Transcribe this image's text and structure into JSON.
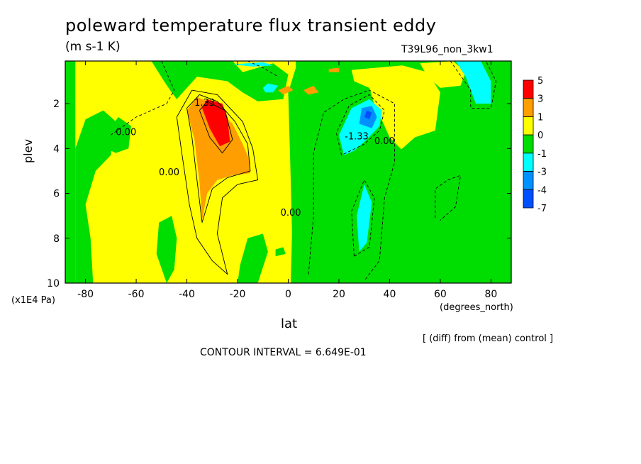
{
  "chart_data": {
    "type": "heatmap",
    "title": "poleward temperature flux transient eddy",
    "units": "(m s-1 K)",
    "run_label": "T39L96_non_3kw1",
    "xlabel": "lat",
    "x_units": "(degrees_north)",
    "ylabel": "plev",
    "y_units": "(x1E4 Pa)",
    "x_range": [
      -88,
      88
    ],
    "y_range": [
      10,
      0.1
    ],
    "x_ticks": [
      -80,
      -60,
      -40,
      -20,
      0,
      20,
      40,
      60,
      80
    ],
    "x_tick_labels": [
      "-80",
      "-60",
      "-40",
      "-20",
      "0",
      "20",
      "40",
      "60",
      "80"
    ],
    "y_ticks": [
      2,
      4,
      6,
      8,
      10
    ],
    "y_tick_labels": [
      "2",
      "4",
      "6",
      "8",
      "10"
    ],
    "note": "[ (diff) from (mean) control ]",
    "contour_interval": "CONTOUR INTERVAL = 6.649E-01",
    "contour_labels": [
      {
        "text": "1.33",
        "lat": -33,
        "plev": 2.1
      },
      {
        "text": "-1.33",
        "lat": 27,
        "plev": 3.6
      },
      {
        "text": "0.00",
        "lat": -64,
        "plev": 3.4
      },
      {
        "text": "0.00",
        "lat": -47,
        "plev": 5.2
      },
      {
        "text": "0.00",
        "lat": 1,
        "plev": 7.0
      },
      {
        "text": "0.00",
        "lat": 38,
        "plev": 3.8
      }
    ],
    "colorbar": {
      "labels": [
        "5",
        "3",
        "1",
        "0",
        "-1",
        "-3",
        "-4",
        "-7"
      ],
      "colors": [
        "#ff0000",
        "#ff9e00",
        "#ffff00",
        "#00dd00",
        "#00ffff",
        "#0090ff",
        "#0050ff"
      ]
    },
    "regions": [
      {
        "color": "#00dd00",
        "points": [
          [
            -88,
            10
          ],
          [
            -88,
            0.1
          ],
          [
            88,
            0.1
          ],
          [
            88,
            10
          ]
        ]
      },
      {
        "color": "#ffff00",
        "points": [
          [
            -84,
            10
          ],
          [
            -84,
            0.1
          ],
          [
            3,
            0.1
          ],
          [
            3,
            1.0
          ],
          [
            0,
            1.5
          ],
          [
            1,
            5.5
          ],
          [
            2,
            10
          ]
        ]
      },
      {
        "color": "#ffff00",
        "points": [
          [
            25,
            0.5
          ],
          [
            45,
            0.3
          ],
          [
            55,
            0.6
          ],
          [
            60,
            1.5
          ],
          [
            58,
            3.2
          ],
          [
            50,
            3.5
          ],
          [
            43,
            4.2
          ],
          [
            38,
            3.6
          ],
          [
            32,
            1.3
          ],
          [
            26,
            1.0
          ]
        ]
      },
      {
        "color": "#ffff00",
        "points": [
          [
            52,
            0.2
          ],
          [
            65,
            0.1
          ],
          [
            70,
            0.6
          ],
          [
            68,
            1.2
          ],
          [
            60,
            1.3
          ],
          [
            55,
            0.8
          ]
        ]
      },
      {
        "color": "#00dd00",
        "points": [
          [
            -77,
            10
          ],
          [
            -78,
            8
          ],
          [
            -80,
            6.5
          ],
          [
            -76,
            5
          ],
          [
            -70,
            4.3
          ],
          [
            -68,
            2.8
          ],
          [
            -73,
            2.3
          ],
          [
            -80,
            2.7
          ],
          [
            -84,
            4
          ],
          [
            -84,
            10
          ]
        ]
      },
      {
        "color": "#00dd00",
        "points": [
          [
            -72,
            3.3
          ],
          [
            -67,
            2.6
          ],
          [
            -62,
            3.0
          ],
          [
            -63,
            4.0
          ],
          [
            -68,
            4.2
          ],
          [
            -72,
            4.0
          ]
        ]
      },
      {
        "color": "#00dd00",
        "points": [
          [
            -48,
            10
          ],
          [
            -52,
            8.7
          ],
          [
            -51,
            7.3
          ],
          [
            -46,
            7.0
          ],
          [
            -44,
            8.0
          ],
          [
            -45,
            9.4
          ]
        ]
      },
      {
        "color": "#00dd00",
        "points": [
          [
            -20,
            10
          ],
          [
            -19,
            9.2
          ],
          [
            -16,
            8.0
          ],
          [
            -10,
            7.8
          ],
          [
            -8,
            8.6
          ],
          [
            -12,
            10
          ]
        ]
      },
      {
        "color": "#00dd00",
        "points": [
          [
            -49,
            1.0
          ],
          [
            -54,
            0.1
          ],
          [
            -22,
            0.1
          ],
          [
            -18,
            0.6
          ],
          [
            -12,
            0.4
          ],
          [
            -6,
            0.2
          ],
          [
            0,
            0.7
          ],
          [
            -2,
            1.8
          ],
          [
            -12,
            1.9
          ],
          [
            -18,
            1.5
          ],
          [
            -24,
            1.0
          ],
          [
            -36,
            0.8
          ],
          [
            -44,
            1.8
          ],
          [
            -46,
            1.5
          ]
        ]
      },
      {
        "color": "#00dd00",
        "points": [
          [
            1,
            10
          ],
          [
            2,
            5.5
          ],
          [
            0,
            1.5
          ],
          [
            3,
            0.4
          ],
          [
            10,
            0.2
          ],
          [
            18,
            0.5
          ],
          [
            22,
            0.9
          ],
          [
            16,
            1.6
          ],
          [
            10,
            1.8
          ],
          [
            6,
            3
          ],
          [
            3,
            5
          ],
          [
            4,
            10
          ]
        ]
      },
      {
        "color": "#00dd00",
        "points": [
          [
            2,
            9.8
          ],
          [
            5,
            9.3
          ],
          [
            8,
            8.9
          ],
          [
            10,
            9.5
          ],
          [
            9,
            10
          ]
        ]
      },
      {
        "color": "#00dd00",
        "points": [
          [
            -5,
            8.5
          ],
          [
            -2,
            8.4
          ],
          [
            -1,
            8.7
          ],
          [
            -5,
            8.8
          ]
        ]
      },
      {
        "color": "#00dd00",
        "points": [
          [
            4,
            10
          ],
          [
            3,
            5
          ],
          [
            6,
            3
          ],
          [
            12,
            2
          ],
          [
            20,
            1.6
          ],
          [
            28,
            1.5
          ],
          [
            36,
            2.5
          ],
          [
            40,
            3.5
          ],
          [
            46,
            4.2
          ],
          [
            52,
            3.9
          ],
          [
            58,
            3.4
          ],
          [
            60,
            1.5
          ],
          [
            68,
            1.4
          ],
          [
            70,
            0.7
          ],
          [
            66,
            0.1
          ],
          [
            88,
            0.1
          ],
          [
            88,
            10
          ]
        ]
      },
      {
        "color": "#00ffff",
        "points": [
          [
            22,
            4.3
          ],
          [
            20,
            3.4
          ],
          [
            25,
            2.2
          ],
          [
            32,
            1.8
          ],
          [
            37,
            2.3
          ],
          [
            36,
            3.0
          ],
          [
            31,
            3.6
          ],
          [
            26,
            4.1
          ]
        ]
      },
      {
        "color": "#00ffff",
        "points": [
          [
            28,
            8.6
          ],
          [
            27,
            7.0
          ],
          [
            30,
            5.6
          ],
          [
            33,
            6.4
          ],
          [
            31,
            8.2
          ]
        ]
      },
      {
        "color": "#00ffff",
        "points": [
          [
            66,
            0.1
          ],
          [
            76,
            0.1
          ],
          [
            80,
            1.0
          ],
          [
            80,
            2.0
          ],
          [
            74,
            2.0
          ],
          [
            70,
            0.8
          ]
        ]
      },
      {
        "color": "#00ffff",
        "points": [
          [
            -10,
            1.3
          ],
          [
            -8,
            1.1
          ],
          [
            -4,
            1.2
          ],
          [
            -6,
            1.5
          ],
          [
            -9,
            1.5
          ]
        ]
      },
      {
        "color": "#00ffff",
        "points": [
          [
            -22,
            0.25
          ],
          [
            -10,
            0.15
          ],
          [
            -6,
            0.3
          ],
          [
            -14,
            0.35
          ]
        ]
      },
      {
        "color": "#0090ff",
        "points": [
          [
            28,
            2.9
          ],
          [
            29,
            2.2
          ],
          [
            33,
            2.1
          ],
          [
            35,
            2.6
          ],
          [
            33,
            3.1
          ]
        ]
      },
      {
        "color": "#0050ff",
        "points": [
          [
            30,
            2.6
          ],
          [
            31,
            2.3
          ],
          [
            33,
            2.4
          ],
          [
            32,
            2.7
          ]
        ]
      },
      {
        "color": "#ff9e00",
        "points": [
          [
            -34,
            7.2
          ],
          [
            -35,
            5.5
          ],
          [
            -37,
            3.6
          ],
          [
            -40,
            2.3
          ],
          [
            -36,
            1.7
          ],
          [
            -30,
            2.0
          ],
          [
            -22,
            2.9
          ],
          [
            -18,
            3.8
          ],
          [
            -15,
            4.6
          ],
          [
            -15,
            5.1
          ],
          [
            -22,
            5.2
          ],
          [
            -28,
            5.4
          ],
          [
            -32,
            6.0
          ]
        ]
      },
      {
        "color": "#ff9e00",
        "points": [
          [
            -4,
            1.4
          ],
          [
            0,
            1.2
          ],
          [
            2,
            1.4
          ],
          [
            -2,
            1.6
          ]
        ]
      },
      {
        "color": "#ff9e00",
        "points": [
          [
            6,
            1.4
          ],
          [
            10,
            1.2
          ],
          [
            12,
            1.5
          ],
          [
            8,
            1.6
          ]
        ]
      },
      {
        "color": "#ff9e00",
        "points": [
          [
            16,
            0.45
          ],
          [
            20,
            0.4
          ],
          [
            20,
            0.6
          ],
          [
            16,
            0.6
          ]
        ]
      },
      {
        "color": "#ff0000",
        "points": [
          [
            -34,
            2.2
          ],
          [
            -32,
            1.8
          ],
          [
            -26,
            2.0
          ],
          [
            -24,
            2.6
          ],
          [
            -23,
            3.7
          ],
          [
            -27,
            3.9
          ],
          [
            -31,
            3.1
          ]
        ]
      }
    ],
    "solid_contours": [
      [
        [
          -40,
          2.2
        ],
        [
          -35,
          1.6
        ],
        [
          -28,
          1.9
        ],
        [
          -21,
          2.8
        ],
        [
          -16,
          3.8
        ],
        [
          -15,
          5.0
        ],
        [
          -24,
          5.3
        ],
        [
          -30,
          5.8
        ],
        [
          -34,
          7.3
        ],
        [
          -36,
          5.4
        ],
        [
          -38,
          3.5
        ],
        [
          -40,
          2.2
        ]
      ],
      [
        [
          -35,
          2.3
        ],
        [
          -32,
          1.9
        ],
        [
          -25,
          2.3
        ],
        [
          -22,
          3.6
        ],
        [
          -26,
          4.2
        ],
        [
          -31,
          3.5
        ],
        [
          -35,
          2.3
        ]
      ],
      [
        [
          -44,
          2.6
        ],
        [
          -38,
          1.4
        ],
        [
          -28,
          1.6
        ],
        [
          -18,
          2.8
        ],
        [
          -14,
          4.0
        ],
        [
          -12,
          5.4
        ],
        [
          -20,
          5.6
        ],
        [
          -26,
          6.2
        ],
        [
          -28,
          7.8
        ],
        [
          -24,
          9.6
        ],
        [
          -30,
          9.0
        ],
        [
          -36,
          8.0
        ],
        [
          -39,
          6.5
        ],
        [
          -42,
          4.2
        ],
        [
          -44,
          2.6
        ]
      ]
    ],
    "dashed_contours": [
      [
        [
          21,
          4.3
        ],
        [
          19,
          3.3
        ],
        [
          24,
          2.1
        ],
        [
          32,
          1.6
        ],
        [
          38,
          2.3
        ],
        [
          36,
          3.2
        ],
        [
          30,
          3.8
        ],
        [
          21,
          4.3
        ]
      ],
      [
        [
          26,
          8.8
        ],
        [
          25,
          6.8
        ],
        [
          30,
          5.4
        ],
        [
          34,
          6.2
        ],
        [
          32,
          8.4
        ],
        [
          26,
          8.8
        ]
      ],
      [
        [
          8,
          9.6
        ],
        [
          10,
          7.0
        ],
        [
          10,
          4.2
        ],
        [
          14,
          2.4
        ],
        [
          22,
          1.8
        ],
        [
          32,
          1.4
        ],
        [
          42,
          2.0
        ],
        [
          42,
          4.6
        ],
        [
          38,
          6.2
        ],
        [
          36,
          9.0
        ],
        [
          30,
          9.9
        ]
      ],
      [
        [
          64,
          0.1
        ],
        [
          72,
          1.4
        ],
        [
          72,
          2.2
        ],
        [
          80,
          2.2
        ],
        [
          82,
          1.0
        ],
        [
          78,
          0.1
        ]
      ],
      [
        [
          58,
          7.1
        ],
        [
          58,
          5.8
        ],
        [
          63,
          5.4
        ],
        [
          68,
          5.2
        ],
        [
          66,
          6.6
        ],
        [
          60,
          7.2
        ]
      ],
      [
        [
          -50,
          0.1
        ],
        [
          -45,
          1.4
        ],
        [
          -48,
          2.0
        ],
        [
          -60,
          2.6
        ],
        [
          -70,
          3.4
        ]
      ],
      [
        [
          -16,
          0.1
        ],
        [
          -10,
          0.4
        ],
        [
          -4,
          0.8
        ]
      ]
    ]
  }
}
